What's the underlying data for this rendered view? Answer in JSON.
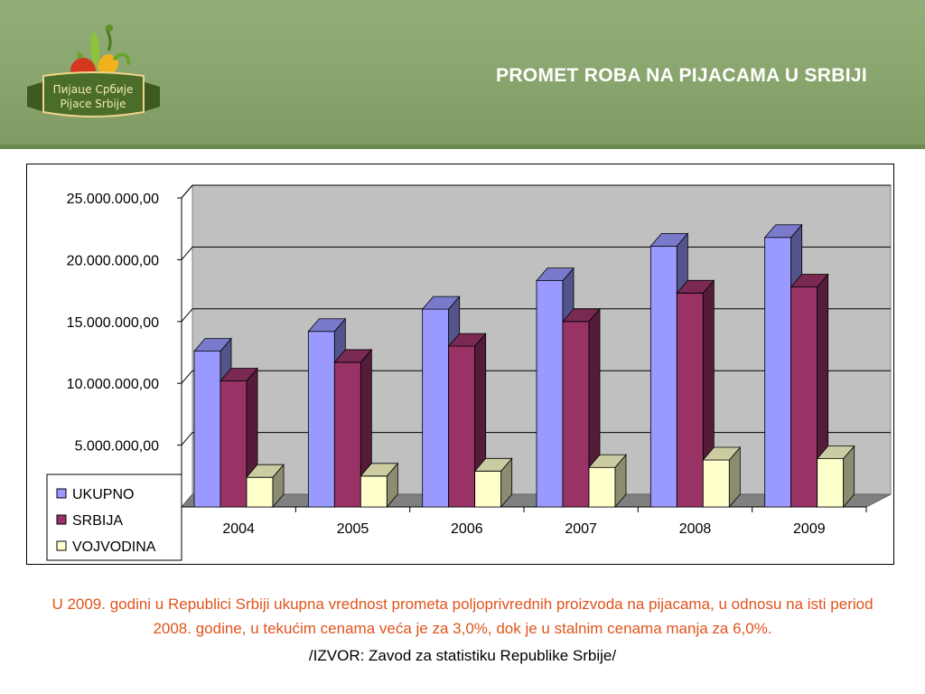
{
  "header": {
    "title": "PROMET ROBA NA PIJACAMA U SRBIJI",
    "logo": {
      "line1": "Пијаце Србије",
      "line2": "Pijace Srbije"
    },
    "colors": {
      "background": "#89a56d",
      "title": "#ffffff"
    }
  },
  "chart_data": {
    "type": "bar",
    "categories": [
      "2004",
      "2005",
      "2006",
      "2007",
      "2008",
      "2009"
    ],
    "series": [
      {
        "name": "UKUPNO",
        "color": "#9999ff",
        "values": [
          12600000,
          14200000,
          16000000,
          18300000,
          21100000,
          21800000
        ]
      },
      {
        "name": "SRBIJA",
        "color": "#993366",
        "values": [
          10200000,
          11700000,
          13000000,
          15000000,
          17300000,
          17800000
        ]
      },
      {
        "name": "VOJVODINA",
        "color": "#ffffcc",
        "values": [
          2400000,
          2500000,
          2900000,
          3200000,
          3800000,
          3900000
        ]
      }
    ],
    "yticks": [
      "25.000.000,00",
      "20.000.000,00",
      "15.000.000,00",
      "10.000.000,00",
      "5.000.000,00"
    ],
    "ylim": [
      0,
      25000000
    ],
    "grid": true,
    "legend_position": "bottom-left",
    "three_d": true
  },
  "caption": "U 2009. godini u Republici Srbiji ukupna vrednost prometa poljoprivrednih proizvoda na pijacama, u odnosu na isti period 2008. godine, u tekućim cenama veća je za 3,0%, dok je u stalnim cenama manja za 6,0%.",
  "source": "/IZVOR: Zavod za statistiku Republike Srbije/"
}
